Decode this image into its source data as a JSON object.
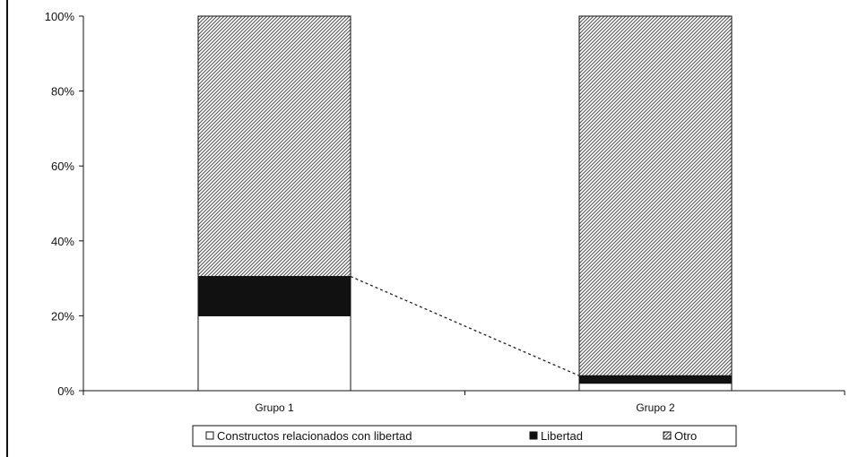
{
  "chart_data": {
    "type": "bar",
    "stacked": true,
    "categories": [
      "Grupo 1",
      "Grupo 2"
    ],
    "series": [
      {
        "name": "Constructos relacionados con libertad",
        "values": [
          20,
          2
        ],
        "color": "#ffffff",
        "pattern": "none"
      },
      {
        "name": "Libertad",
        "values": [
          10.5,
          2
        ],
        "color": "#111111",
        "pattern": "solid"
      },
      {
        "name": "Otro",
        "values": [
          69.5,
          96
        ],
        "color": "#808080",
        "pattern": "diagonal-hatch"
      }
    ],
    "yticks": [
      "0%",
      "20%",
      "40%",
      "60%",
      "80%",
      "100%"
    ],
    "ylim": [
      0,
      100
    ],
    "title": "",
    "xlabel": "",
    "ylabel": "",
    "legend_position": "bottom",
    "grid": false,
    "series_lines": true
  }
}
